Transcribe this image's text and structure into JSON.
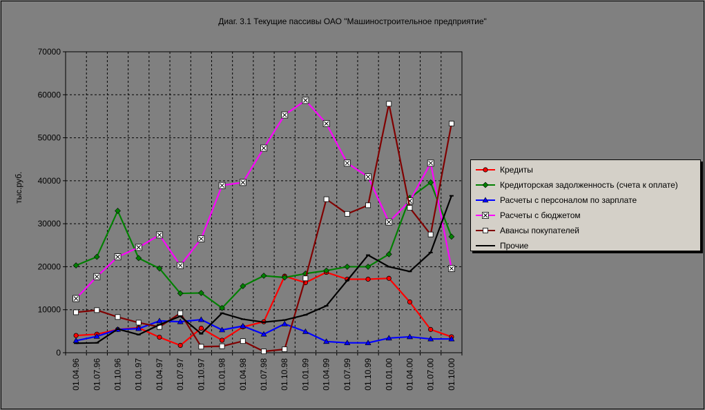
{
  "chart_data": {
    "type": "line",
    "title": "Диаг. 3.1 Текущие пассивы ОАО \"Машиностроительное предприятие\"",
    "ylabel": "тыс.руб.",
    "xlabel": "",
    "ylim": [
      0,
      70000
    ],
    "yticks": [
      "0",
      "10000",
      "20000",
      "30000",
      "40000",
      "50000",
      "60000",
      "70000"
    ],
    "grid": true,
    "legend_position": "right",
    "categories": [
      "01.04.96",
      "01.07.96",
      "01.10.96",
      "01.01.97",
      "01.04.97",
      "01.07.97",
      "01.10.97",
      "01.01.98",
      "01.04.98",
      "01.07.98",
      "01.10.98",
      "01.01.99",
      "01.04.99",
      "01.07.99",
      "01.10.99",
      "01.01.00",
      "01.04.00",
      "01.07.00",
      "01.10.00"
    ],
    "series": [
      {
        "name": "Кредиты",
        "color": "#ff0000",
        "marker": "circle",
        "values": [
          4000,
          4300,
          5400,
          5800,
          3600,
          1700,
          5700,
          2900,
          6000,
          7200,
          17800,
          16300,
          18700,
          17100,
          17100,
          17300,
          11800,
          5400,
          3700
        ]
      },
      {
        "name": "Кредиторская задолженность (счета к оплате)",
        "color": "#008000",
        "marker": "diamond",
        "values": [
          20300,
          22300,
          33000,
          22000,
          19600,
          13800,
          13900,
          10400,
          15500,
          17900,
          17500,
          18400,
          19100,
          20000,
          20000,
          22900,
          36000,
          39600,
          27000
        ]
      },
      {
        "name": "Расчеты с персоналом по зарплате",
        "color": "#0000ff",
        "marker": "triangle",
        "values": [
          2800,
          3800,
          5400,
          5600,
          7400,
          7200,
          7700,
          5300,
          6200,
          4300,
          6700,
          4900,
          2600,
          2300,
          2300,
          3400,
          3700,
          3200,
          3200
        ]
      },
      {
        "name": "Расчеты с бюджетом",
        "color": "#ff00ff",
        "marker": "xbox",
        "values": [
          12600,
          17700,
          22300,
          24500,
          27400,
          20300,
          26500,
          38900,
          39600,
          47600,
          55300,
          58700,
          53300,
          44100,
          40900,
          30400,
          35300,
          44100,
          19600
        ]
      },
      {
        "name": "Авансы покупателей",
        "color": "#800000",
        "marker": "square",
        "values": [
          9400,
          9900,
          8300,
          7000,
          6000,
          9200,
          1400,
          1500,
          2700,
          300,
          800,
          17300,
          35700,
          32300,
          34300,
          57900,
          33700,
          27500,
          53300
        ]
      },
      {
        "name": "Прочие",
        "color": "#000000",
        "marker": "dash",
        "values": [
          2200,
          2300,
          5500,
          4200,
          6500,
          8500,
          4400,
          9200,
          7800,
          7100,
          7600,
          8800,
          10900,
          16800,
          22700,
          20000,
          18900,
          23300,
          36500
        ]
      }
    ]
  }
}
